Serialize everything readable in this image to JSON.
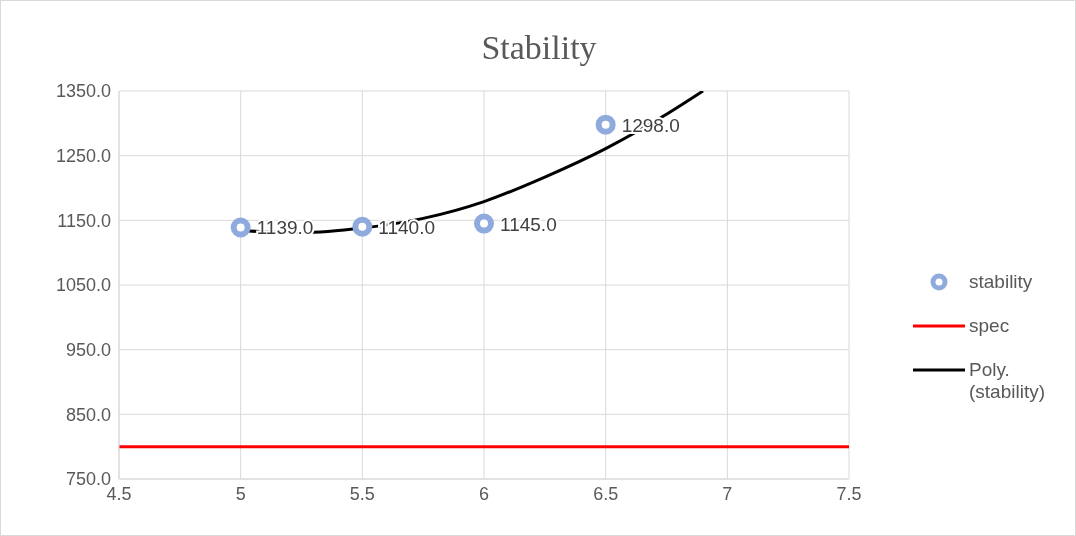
{
  "chart_data": {
    "type": "scatter",
    "title": "Stability",
    "xlim": [
      4.5,
      7.5
    ],
    "xticks": [
      4.5,
      5,
      5.5,
      6,
      6.5,
      7,
      7.5
    ],
    "ylim": [
      750,
      1350
    ],
    "yticks": [
      {
        "value": 750,
        "label": "750.0"
      },
      {
        "value": 850,
        "label": "850.0"
      },
      {
        "value": 950,
        "label": "950.0"
      },
      {
        "value": 1050,
        "label": "1050.0"
      },
      {
        "value": 1150,
        "label": "1150.0"
      },
      {
        "value": 1250,
        "label": "1250.0"
      },
      {
        "value": 1350,
        "label": "1350.0"
      }
    ],
    "grid": true,
    "legend": "right",
    "series": [
      {
        "name": "stability",
        "marker": "circle",
        "color": "#8faadc",
        "x": [
          5,
          5.5,
          6,
          6.5
        ],
        "values": [
          1139,
          1140,
          1145,
          1298
        ],
        "value_labels": [
          "1139.0",
          "1140.0",
          "1145.0",
          "1298.0"
        ]
      },
      {
        "name": "spec",
        "type": "line",
        "color": "#ff0000",
        "marker": "none",
        "x": [
          4.5,
          7.5
        ],
        "values": [
          800,
          800
        ]
      },
      {
        "name": "Poly. (stability)",
        "type": "line",
        "color": "#000000",
        "marker": "none",
        "x": [
          5,
          5.25,
          5.5,
          5.75,
          6,
          6.25,
          6.5,
          6.75,
          6.9
        ],
        "values": [
          1134,
          1131,
          1138,
          1153,
          1179,
          1217,
          1261,
          1314,
          1350
        ]
      }
    ]
  }
}
